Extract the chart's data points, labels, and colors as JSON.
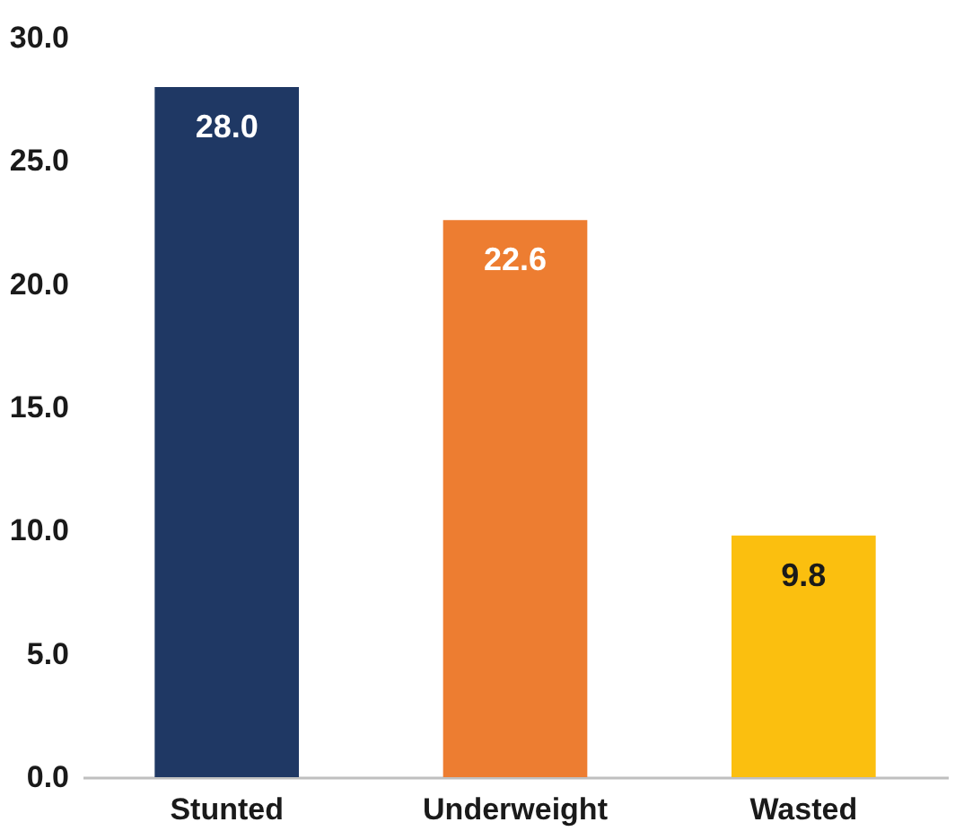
{
  "chart_data": {
    "type": "bar",
    "categories": [
      "Stunted",
      "Underweight",
      "Wasted"
    ],
    "values": [
      28.0,
      22.6,
      9.8
    ],
    "colors": [
      "#1f3864",
      "#ed7d31",
      "#fbbf0f"
    ],
    "value_labels": [
      "28.0",
      "22.6",
      "9.8"
    ],
    "ylim": [
      0,
      30
    ],
    "yticks": [
      {
        "value": 0,
        "label": "0.0"
      },
      {
        "value": 5,
        "label": "5.0"
      },
      {
        "value": 10,
        "label": "10.0"
      },
      {
        "value": 15,
        "label": "15.0"
      },
      {
        "value": 20,
        "label": "20.0"
      },
      {
        "value": 25,
        "label": "25.0"
      },
      {
        "value": 30,
        "label": "30.0"
      }
    ],
    "grid": false
  }
}
